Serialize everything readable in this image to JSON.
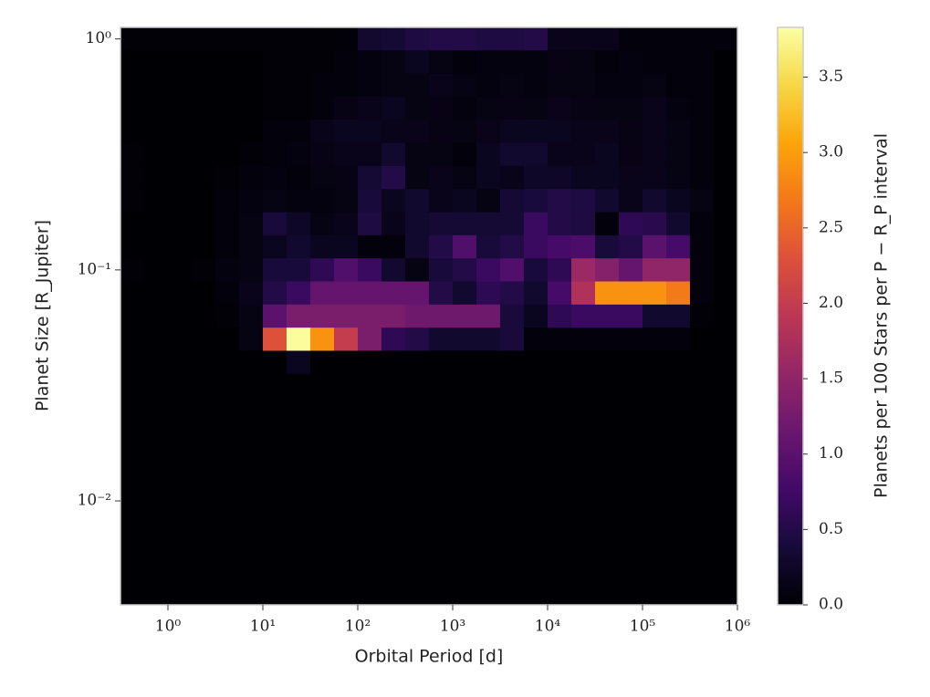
{
  "chart_data": {
    "type": "heatmap",
    "xlabel": "Orbital Period [d]",
    "ylabel": "Planet Size [R_Jupiter]",
    "colorbar_label": "Planets per 100 Stars per P − R_P interval",
    "colormap": "inferno",
    "xscale": "log",
    "yscale": "log",
    "xlim": [
      0.3162,
      1000000
    ],
    "ylim": [
      0.003548,
      1.122
    ],
    "clim": [
      0,
      3.83
    ],
    "xticks": [
      {
        "value": 1,
        "label": "10⁰"
      },
      {
        "value": 10,
        "label": "10¹"
      },
      {
        "value": 100,
        "label": "10²"
      },
      {
        "value": 1000,
        "label": "10³"
      },
      {
        "value": 10000,
        "label": "10⁴"
      },
      {
        "value": 100000,
        "label": "10⁵"
      },
      {
        "value": 1000000,
        "label": "10⁶"
      }
    ],
    "yticks": [
      {
        "value": 1,
        "label": "10⁰"
      },
      {
        "value": 0.1,
        "label": "10⁻¹"
      },
      {
        "value": 0.01,
        "label": "10⁻²"
      }
    ],
    "cticks": [
      {
        "value": 0,
        "label": "0.0"
      },
      0.5,
      {
        "value": 1,
        "label": "1.0"
      },
      1.5,
      {
        "value": 2,
        "label": "2.0"
      },
      2.5,
      {
        "value": 3,
        "label": "3.0"
      },
      3.5
    ],
    "x_edges": [
      0.3162,
      0.5623,
      1,
      1.778,
      3.162,
      5.623,
      10,
      17.78,
      31.62,
      56.23,
      100,
      177.8,
      316.2,
      562.3,
      1000,
      1778,
      3162,
      5623,
      10000,
      17783,
      31623,
      56234,
      100000,
      177828,
      316228,
      562341,
      1000000
    ],
    "y_edges": [
      1.122,
      0.8913,
      0.7079,
      0.5623,
      0.4467,
      0.3548,
      0.2818,
      0.2239,
      0.1778,
      0.1413,
      0.1122,
      0.08913,
      0.07079,
      0.05623,
      0.04467,
      0.03548,
      0.02818,
      0.02239,
      0.01778,
      0.01413,
      0.01122,
      0.008913,
      0.007079,
      0.005623,
      0.004467,
      0.003548
    ],
    "z": [
      [
        0.02,
        0.02,
        0.02,
        0.02,
        0.02,
        0.02,
        0.02,
        0.02,
        0.03,
        0.04,
        0.3,
        0.35,
        0.45,
        0.5,
        0.5,
        0.45,
        0.45,
        0.5,
        0.15,
        0.15,
        0.15,
        0.05,
        0.05,
        0.05,
        0.05,
        0.05
      ],
      [
        0,
        0,
        0,
        0,
        0,
        0,
        0.02,
        0.02,
        0.03,
        0.05,
        0.08,
        0.1,
        0.2,
        0.1,
        0.05,
        0.08,
        0.08,
        0.08,
        0.12,
        0.1,
        0.05,
        0.08,
        0.06,
        0.05,
        0.05,
        0
      ],
      [
        0,
        0,
        0,
        0,
        0,
        0,
        0.02,
        0.03,
        0.05,
        0.06,
        0.08,
        0.1,
        0.1,
        0.15,
        0.1,
        0.08,
        0.1,
        0.08,
        0.1,
        0.1,
        0.08,
        0.08,
        0.1,
        0.05,
        0.05,
        0
      ],
      [
        0,
        0,
        0,
        0,
        0,
        0,
        0.02,
        0.03,
        0.05,
        0.12,
        0.15,
        0.2,
        0.1,
        0.12,
        0.08,
        0.1,
        0.12,
        0.1,
        0.15,
        0.12,
        0.1,
        0.1,
        0.15,
        0.08,
        0.05,
        0
      ],
      [
        0,
        0,
        0,
        0,
        0,
        0,
        0.05,
        0.05,
        0.15,
        0.2,
        0.2,
        0.15,
        0.15,
        0.12,
        0.1,
        0.15,
        0.2,
        0.2,
        0.2,
        0.15,
        0.15,
        0.12,
        0.15,
        0.1,
        0.05,
        0
      ],
      [
        0.02,
        0,
        0,
        0,
        0,
        0.03,
        0.05,
        0.08,
        0.12,
        0.15,
        0.15,
        0.3,
        0.1,
        0.1,
        0.05,
        0.2,
        0.3,
        0.3,
        0.15,
        0.15,
        0.2,
        0.12,
        0.15,
        0.1,
        0.05,
        0
      ],
      [
        0.03,
        0,
        0,
        0,
        0.03,
        0.05,
        0.08,
        0.05,
        0.1,
        0.12,
        0.35,
        0.5,
        0.1,
        0.15,
        0.1,
        0.2,
        0.15,
        0.25,
        0.25,
        0.2,
        0.2,
        0.15,
        0.15,
        0.1,
        0.05,
        0
      ],
      [
        0.02,
        0,
        0,
        0,
        0.05,
        0.08,
        0.1,
        0.08,
        0.08,
        0.1,
        0.4,
        0.2,
        0.3,
        0.15,
        0.2,
        0.1,
        0.35,
        0.4,
        0.5,
        0.45,
        0.3,
        0.15,
        0.3,
        0.2,
        0.1,
        0
      ],
      [
        0,
        0,
        0,
        0,
        0.05,
        0.1,
        0.4,
        0.25,
        0.1,
        0.15,
        0.45,
        0.15,
        0.3,
        0.35,
        0.35,
        0.35,
        0.35,
        0.7,
        0.5,
        0.45,
        0.05,
        0.6,
        0.55,
        0.3,
        0.05,
        0
      ],
      [
        0,
        0,
        0,
        0,
        0.05,
        0.1,
        0.2,
        0.3,
        0.2,
        0.2,
        0.05,
        0.05,
        0.3,
        0.5,
        0.9,
        0.4,
        0.5,
        0.7,
        0.8,
        0.85,
        0.4,
        0.5,
        1.0,
        0.8,
        0.05,
        0
      ],
      [
        0.02,
        0,
        0,
        0.03,
        0.08,
        0.1,
        0.4,
        0.4,
        0.6,
        0.9,
        0.7,
        0.3,
        0.1,
        0.4,
        0.5,
        0.7,
        0.9,
        0.4,
        0.6,
        1.6,
        1.4,
        1.1,
        1.5,
        1.5,
        0.05,
        0
      ],
      [
        0,
        0,
        0,
        0,
        0.05,
        0.15,
        0.5,
        0.7,
        1.1,
        1.1,
        1.1,
        1.1,
        1.1,
        0.5,
        0.3,
        0.6,
        0.5,
        0.3,
        0.8,
        1.8,
        2.9,
        2.9,
        2.9,
        2.7,
        0.05,
        0
      ],
      [
        0,
        0,
        0,
        0,
        0.03,
        0.1,
        1.0,
        1.3,
        1.3,
        1.3,
        1.3,
        1.3,
        1.2,
        1.2,
        1.2,
        1.2,
        0.4,
        0.2,
        0.6,
        0.7,
        0.7,
        0.7,
        0.3,
        0.3,
        0.02,
        0
      ],
      [
        0,
        0,
        0,
        0,
        0,
        0.1,
        2.3,
        3.8,
        2.9,
        2.0,
        1.3,
        0.6,
        0.5,
        0.3,
        0.3,
        0.3,
        0.4,
        0.05,
        0.05,
        0.05,
        0.05,
        0.05,
        0.05,
        0.05,
        0,
        0
      ],
      [
        0,
        0,
        0,
        0,
        0,
        0,
        0,
        0.2,
        0,
        0,
        0,
        0,
        0,
        0,
        0,
        0,
        0,
        0,
        0,
        0,
        0,
        0,
        0,
        0,
        0,
        0
      ],
      [
        0,
        0,
        0,
        0,
        0,
        0,
        0,
        0,
        0,
        0,
        0,
        0,
        0,
        0,
        0,
        0,
        0,
        0,
        0,
        0,
        0,
        0,
        0,
        0,
        0,
        0
      ],
      [
        0,
        0,
        0,
        0,
        0,
        0,
        0,
        0,
        0,
        0,
        0,
        0,
        0,
        0,
        0,
        0,
        0,
        0,
        0,
        0,
        0,
        0,
        0,
        0,
        0,
        0
      ],
      [
        0,
        0,
        0,
        0,
        0,
        0,
        0,
        0,
        0,
        0,
        0,
        0,
        0,
        0,
        0,
        0,
        0,
        0,
        0,
        0,
        0,
        0,
        0,
        0,
        0,
        0
      ],
      [
        0,
        0,
        0,
        0,
        0,
        0,
        0,
        0,
        0,
        0,
        0,
        0,
        0,
        0,
        0,
        0,
        0,
        0,
        0,
        0,
        0,
        0,
        0,
        0,
        0,
        0
      ],
      [
        0,
        0,
        0,
        0,
        0,
        0,
        0,
        0,
        0,
        0,
        0,
        0,
        0,
        0,
        0,
        0,
        0,
        0,
        0,
        0,
        0,
        0,
        0,
        0,
        0,
        0
      ],
      [
        0,
        0,
        0,
        0,
        0,
        0,
        0,
        0,
        0,
        0,
        0,
        0,
        0,
        0,
        0,
        0,
        0,
        0,
        0,
        0,
        0,
        0,
        0,
        0,
        0,
        0
      ],
      [
        0,
        0,
        0,
        0,
        0,
        0,
        0,
        0,
        0,
        0,
        0,
        0,
        0,
        0,
        0,
        0,
        0,
        0,
        0,
        0,
        0,
        0,
        0,
        0,
        0,
        0
      ],
      [
        0,
        0,
        0,
        0,
        0,
        0,
        0,
        0,
        0,
        0,
        0,
        0,
        0,
        0,
        0,
        0,
        0,
        0,
        0,
        0,
        0,
        0,
        0,
        0,
        0,
        0
      ],
      [
        0,
        0,
        0,
        0,
        0,
        0,
        0,
        0,
        0,
        0,
        0,
        0,
        0,
        0,
        0,
        0,
        0,
        0,
        0,
        0,
        0,
        0,
        0,
        0,
        0,
        0
      ],
      [
        0,
        0,
        0,
        0,
        0,
        0,
        0,
        0,
        0,
        0,
        0,
        0,
        0,
        0,
        0,
        0,
        0,
        0,
        0,
        0,
        0,
        0,
        0,
        0,
        0,
        0
      ]
    ]
  }
}
